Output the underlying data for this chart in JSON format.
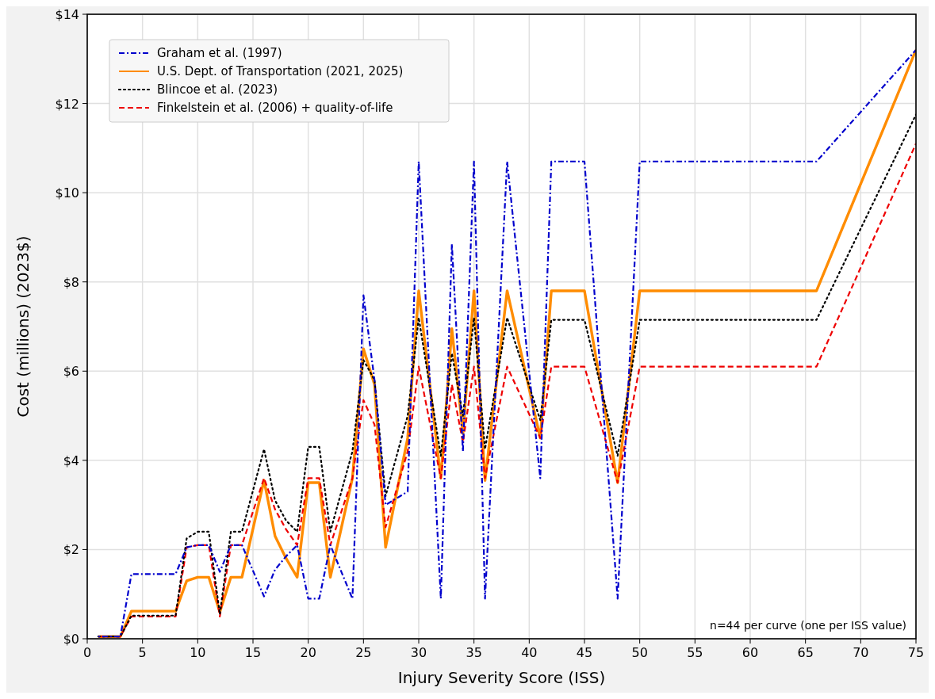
{
  "chart_data": {
    "type": "line",
    "xlabel": "Injury Severity Score (ISS)",
    "ylabel": "Cost (millions) (2023$)",
    "x": [
      1,
      2,
      3,
      4,
      5,
      6,
      8,
      9,
      10,
      11,
      12,
      13,
      14,
      16,
      17,
      18,
      19,
      20,
      21,
      22,
      24,
      25,
      26,
      27,
      29,
      30,
      32,
      33,
      34,
      35,
      36,
      38,
      41,
      42,
      43,
      45,
      48,
      50,
      51,
      54,
      57,
      59,
      66,
      75
    ],
    "series": [
      {
        "name": "Graham et al. (1997)",
        "color": "#0000cc",
        "line_style": "dashdot",
        "values": [
          0.05,
          0.05,
          0.05,
          1.45,
          1.45,
          1.45,
          1.45,
          2.05,
          2.1,
          2.1,
          1.5,
          2.1,
          2.1,
          0.95,
          1.55,
          1.85,
          2.1,
          0.9,
          0.9,
          2.1,
          0.9,
          7.7,
          5.8,
          3.0,
          3.3,
          10.7,
          0.9,
          8.85,
          4.2,
          10.7,
          0.9,
          10.7,
          3.6,
          10.7,
          10.7,
          10.7,
          0.9,
          10.7,
          10.7,
          10.7,
          10.7,
          10.7,
          10.7,
          13.2
        ]
      },
      {
        "name": "U.S. Dept. of Transportation (2021, 2025)",
        "color": "#ff8c00",
        "line_style": "solid",
        "values": [
          0.05,
          0.05,
          0.05,
          0.62,
          0.62,
          0.62,
          0.62,
          1.3,
          1.38,
          1.38,
          0.6,
          1.38,
          1.38,
          3.55,
          2.3,
          1.8,
          1.38,
          3.5,
          3.5,
          1.38,
          3.6,
          6.5,
          5.7,
          2.05,
          4.5,
          7.8,
          3.6,
          6.95,
          4.6,
          7.8,
          3.55,
          7.8,
          4.5,
          7.8,
          7.8,
          7.8,
          3.5,
          7.8,
          7.8,
          7.8,
          7.8,
          7.8,
          7.8,
          13.2
        ]
      },
      {
        "name": "Blincoe et al. (2023)",
        "color": "#000000",
        "line_style": "dotted",
        "values": [
          0.05,
          0.05,
          0.05,
          0.52,
          0.52,
          0.52,
          0.52,
          2.25,
          2.4,
          2.4,
          0.55,
          2.4,
          2.4,
          4.25,
          3.1,
          2.65,
          2.4,
          4.3,
          4.3,
          2.4,
          4.2,
          6.25,
          5.8,
          3.2,
          5.0,
          7.2,
          4.1,
          6.4,
          5.0,
          7.2,
          4.25,
          7.2,
          4.9,
          7.15,
          7.15,
          7.15,
          4.1,
          7.15,
          7.15,
          7.15,
          7.15,
          7.15,
          7.15,
          11.75
        ]
      },
      {
        "name": "Finkelstein et al. (2006) + quality-of-life",
        "color": "#ee0000",
        "line_style": "dashed",
        "values": [
          0.05,
          0.05,
          0.05,
          0.5,
          0.5,
          0.5,
          0.5,
          2.05,
          2.1,
          2.1,
          0.5,
          2.1,
          2.1,
          3.6,
          2.9,
          2.45,
          2.1,
          3.6,
          3.6,
          2.1,
          3.6,
          5.35,
          4.8,
          2.5,
          4.2,
          6.1,
          3.6,
          5.7,
          4.4,
          6.1,
          3.6,
          6.1,
          4.5,
          6.1,
          6.1,
          6.1,
          3.5,
          6.1,
          6.1,
          6.1,
          6.1,
          6.1,
          6.1,
          11.1
        ]
      }
    ],
    "xlim": [
      0,
      75
    ],
    "xticks": [
      0,
      5,
      10,
      15,
      20,
      25,
      30,
      35,
      40,
      45,
      50,
      55,
      60,
      65,
      70,
      75
    ],
    "ylim": [
      0,
      14
    ],
    "yticks": [
      {
        "value": 0,
        "label": "$0"
      },
      {
        "value": 2,
        "label": "$2"
      },
      {
        "value": 4,
        "label": "$4"
      },
      {
        "value": 6,
        "label": "$6"
      },
      {
        "value": 8,
        "label": "$8"
      },
      {
        "value": 10,
        "label": "$10"
      },
      {
        "value": 12,
        "label": "$12"
      },
      {
        "value": 14,
        "label": "$14"
      }
    ],
    "grid": true,
    "legend": "top left",
    "marker": "none",
    "annotations": [
      "n=44 per curve (one per ISS value)"
    ]
  }
}
